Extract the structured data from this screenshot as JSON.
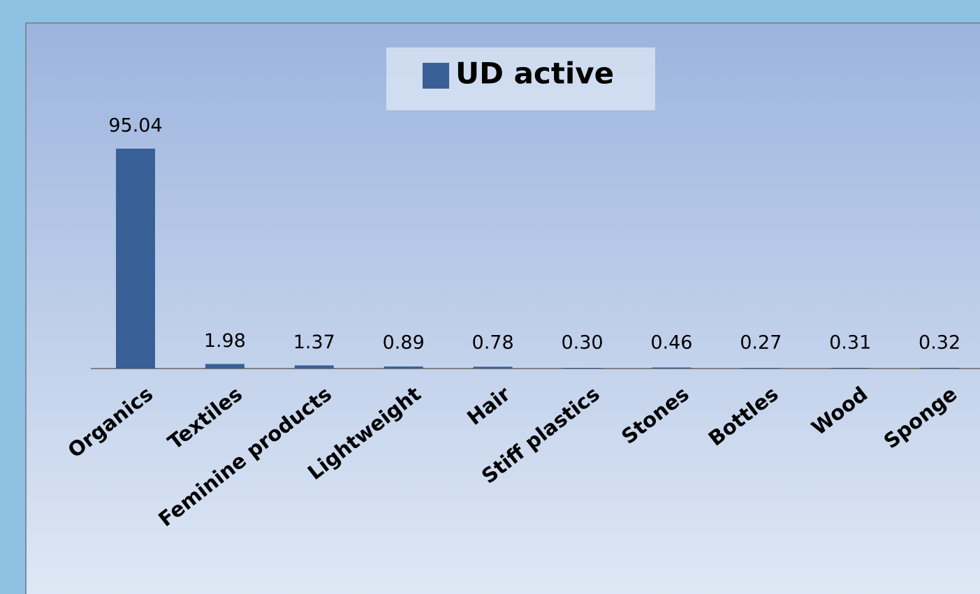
{
  "chart_data": {
    "type": "bar",
    "categories": [
      "Organics",
      "Textiles",
      "Feminine products",
      "Lightweight",
      "Hair",
      "Stiff plastics",
      "Stones",
      "Bottles",
      "Wood",
      "Sponge"
    ],
    "series": [
      {
        "name": "UD active",
        "color": "#386096",
        "values": [
          95.04,
          1.98,
          1.37,
          0.89,
          0.78,
          0.3,
          0.46,
          0.27,
          0.31,
          0.32
        ],
        "value_labels": [
          "95.04",
          "1.98",
          "1.37",
          "0.89",
          "0.78",
          "0.30",
          "0.46",
          "0.27",
          "0.31",
          "0.32"
        ]
      }
    ]
  }
}
